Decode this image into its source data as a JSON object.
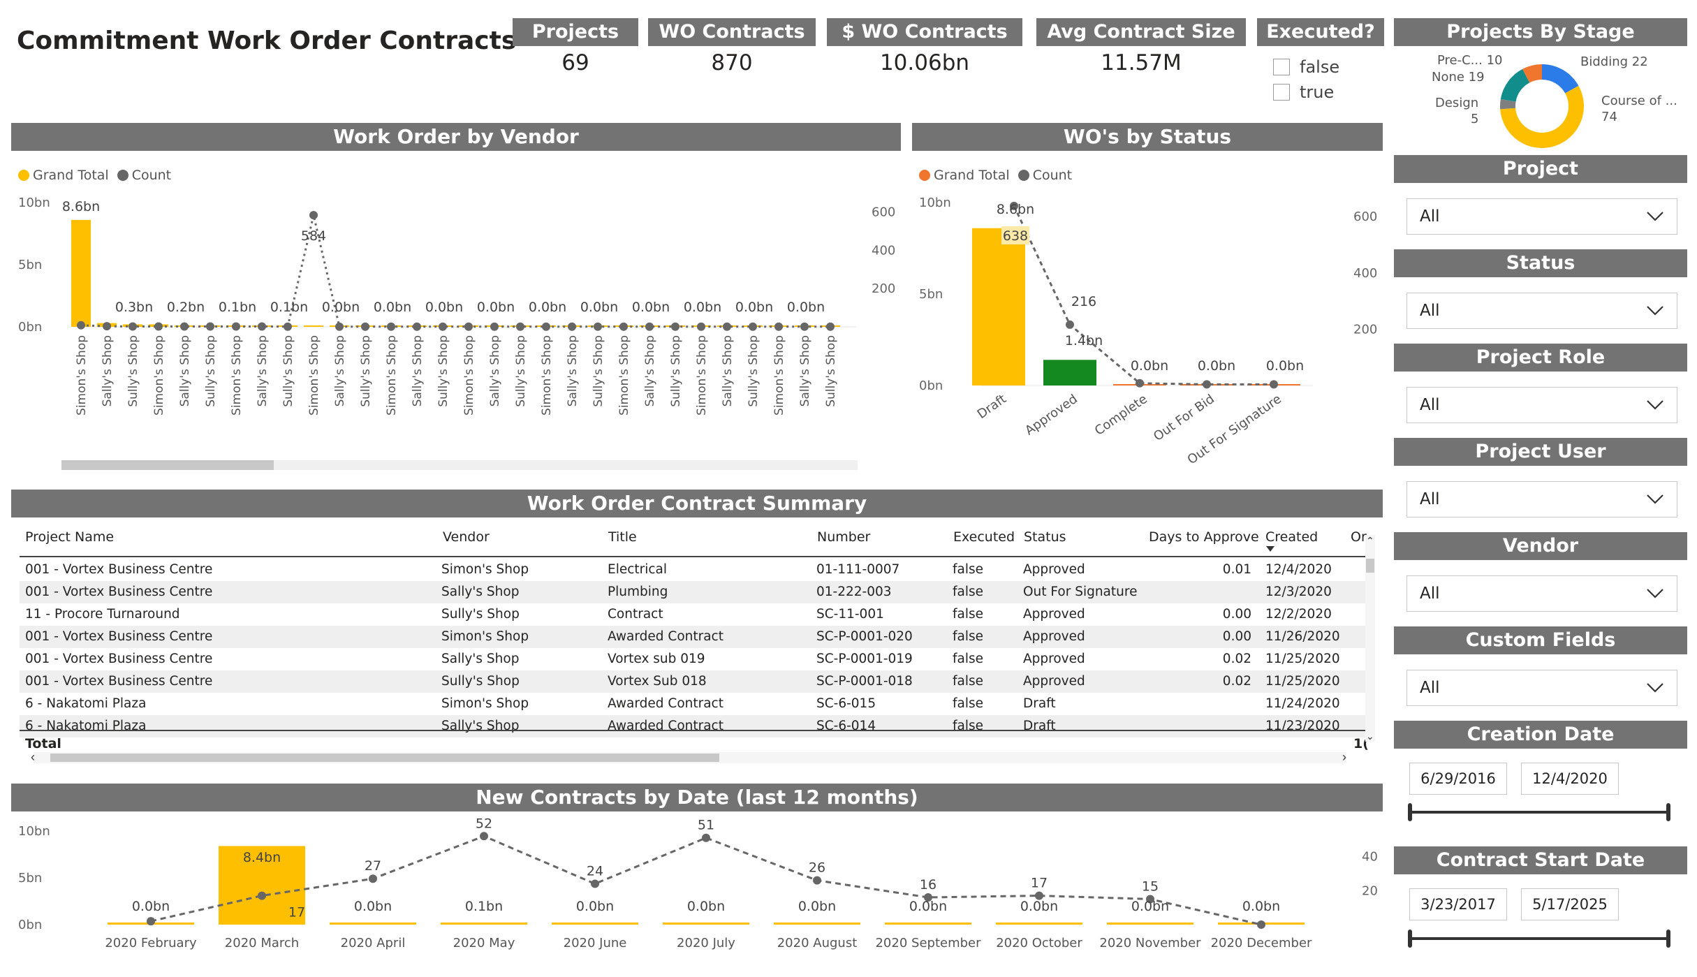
{
  "title": "Commitment Work Order Contracts",
  "kpis": [
    {
      "label": "Projects",
      "value": "69"
    },
    {
      "label": "WO Contracts",
      "value": "870"
    },
    {
      "label": "$ WO Contracts",
      "value": "10.06bn"
    },
    {
      "label": "Avg Contract Size",
      "value": "11.57M"
    }
  ],
  "executed": {
    "label": "Executed?",
    "options": [
      "false",
      "true"
    ]
  },
  "stage": {
    "title": "Projects By Stage",
    "labels": [
      {
        "name": "Pre-C... 10"
      },
      {
        "name": "None 19"
      },
      {
        "name": "Design"
      },
      {
        "name": "5"
      },
      {
        "name": "Bidding 22"
      },
      {
        "name": "Course of ..."
      },
      {
        "name": "74"
      }
    ],
    "segments": [
      {
        "name": "Course of Construction",
        "value": 74,
        "color": "#FDBF00"
      },
      {
        "name": "Bidding",
        "value": 22,
        "color": "#2B7CE9"
      },
      {
        "name": "None",
        "value": 19,
        "color": "#118D8C"
      },
      {
        "name": "Pre-Construction",
        "value": 10,
        "color": "#F0762D"
      },
      {
        "name": "Design",
        "value": 5,
        "color": "#7F7F7F"
      }
    ]
  },
  "slicers": {
    "project": {
      "label": "Project",
      "value": "All"
    },
    "status": {
      "label": "Status",
      "value": "All"
    },
    "project_role": {
      "label": "Project Role",
      "value": "All"
    },
    "project_user": {
      "label": "Project User",
      "value": "All"
    },
    "vendor": {
      "label": "Vendor",
      "value": "All"
    },
    "custom_fields": {
      "label": "Custom Fields",
      "value": "All"
    },
    "creation_date": {
      "label": "Creation Date",
      "start": "6/29/2016",
      "end": "12/4/2020"
    },
    "contract_start_date": {
      "label": "Contract Start Date",
      "start": "3/23/2017",
      "end": "5/17/2025"
    }
  },
  "vendor_chart": {
    "title": "Work Order by Vendor",
    "legend": [
      "Grand Total",
      "Count"
    ],
    "colors": {
      "bar": "#FDBF00",
      "line": "#666666"
    }
  },
  "status_chart": {
    "title": "WO's by Status",
    "legend": [
      "Grand Total",
      "Count"
    ],
    "colors": {
      "legend_total": "#F0762D",
      "line": "#666666"
    }
  },
  "date_chart": {
    "title": "New Contracts by Date (last 12 months)"
  },
  "table": {
    "title": "Work Order Contract Summary",
    "columns": [
      "Project Name",
      "Vendor",
      "Title",
      "Number",
      "Executed",
      "Status",
      "Days to Approve",
      "Created",
      "Or"
    ],
    "rows": [
      [
        "001 - Vortex Business Centre",
        "Simon's Shop",
        "Electrical",
        "01-111-0007",
        "false",
        "Approved",
        "0.01",
        "12/4/2020"
      ],
      [
        "001 - Vortex Business Centre",
        "Sally's Shop",
        "Plumbing",
        "01-222-003",
        "false",
        "Out For Signature",
        "",
        "12/3/2020"
      ],
      [
        "11 - Procore Turnaround",
        "Sully's Shop",
        "Contract",
        "SC-11-001",
        "false",
        "Approved",
        "0.00",
        "12/2/2020"
      ],
      [
        "001 - Vortex Business Centre",
        "Simon's Shop",
        "Awarded Contract",
        "SC-P-0001-020",
        "false",
        "Approved",
        "0.00",
        "11/26/2020"
      ],
      [
        "001 - Vortex Business Centre",
        "Sally's Shop",
        "Vortex sub 019",
        "SC-P-0001-019",
        "false",
        "Approved",
        "0.02",
        "11/25/2020"
      ],
      [
        "001 - Vortex Business Centre",
        "Sully's Shop",
        "Vortex Sub 018",
        "SC-P-0001-018",
        "false",
        "Approved",
        "0.02",
        "11/25/2020"
      ],
      [
        "6 - Nakatomi Plaza",
        "Simon's Shop",
        "Awarded Contract",
        "SC-6-015",
        "false",
        "Draft",
        "",
        "11/24/2020"
      ],
      [
        "6 - Nakatomi Plaza",
        "Sally's Shop",
        "Awarded Contract",
        "SC-6-014",
        "false",
        "Draft",
        "",
        "11/23/2020"
      ]
    ],
    "total_label": "Total",
    "total_tail": "1("
  },
  "chart_data": [
    {
      "type": "bar",
      "title": "Work Order by Vendor",
      "legend": [
        "Grand Total",
        "Count"
      ],
      "categories": [
        "Simon's Shop",
        "Sally's Shop",
        "Sully's Shop",
        "Simon's Shop",
        "Sally's Shop",
        "Sully's Shop",
        "Simon's Shop",
        "Sally's Shop",
        "Sully's Shop",
        "Simon's Shop",
        "Sally's Shop",
        "Sully's Shop",
        "Simon's Shop",
        "Sally's Shop",
        "Sully's Shop",
        "Simon's Shop",
        "Sally's Shop",
        "Sully's Shop",
        "Simon's Shop",
        "Sally's Shop",
        "Sully's Shop",
        "Simon's Shop",
        "Sally's Shop",
        "Sully's Shop",
        "Simon's Shop",
        "Sally's Shop",
        "Sully's Shop",
        "Simon's Shop",
        "Sally's Shop",
        "Sully's Shop"
      ],
      "series": [
        {
          "name": "Grand Total",
          "values": [
            8.6,
            0.3,
            0.2,
            0.2,
            0.1,
            0.1,
            0.1,
            0.1,
            0.0,
            0.0,
            0.0,
            0.0,
            0.0,
            0.0,
            0.0,
            0.0,
            0.0,
            0.0,
            0.0,
            0.0,
            0.0,
            0.0,
            0.0,
            0.0,
            0.0,
            0.0,
            0.0,
            0.0,
            0.0,
            0.0
          ]
        },
        {
          "name": "Count",
          "values": [
            8,
            3,
            2,
            2,
            2,
            2,
            2,
            2,
            1,
            584,
            1,
            1,
            1,
            1,
            1,
            1,
            1,
            1,
            1,
            1,
            1,
            1,
            1,
            1,
            1,
            1,
            1,
            1,
            1,
            1
          ]
        }
      ],
      "labels": [
        "8.6bn",
        "0.3bn",
        "0.2bn",
        "0.1bn",
        "0.1bn",
        "0.0bn",
        "0.0bn",
        "0.0bn",
        "0.0bn",
        "0.0bn",
        "0.0bn",
        "0.0bn",
        "0.0bn",
        "0.0bn",
        "0.0bn"
      ],
      "count_peak_label": "584",
      "y_ticks": [
        "0bn",
        "5bn",
        "10bn"
      ],
      "y2_ticks": [
        "200",
        "400",
        "600"
      ],
      "ylim": [
        0,
        10
      ],
      "y2lim": [
        0,
        650
      ]
    },
    {
      "type": "bar",
      "title": "WO's by Status",
      "legend": [
        "Grand Total",
        "Count"
      ],
      "categories": [
        "Draft",
        "Approved",
        "Complete",
        "Out For Bid",
        "Out For Signature"
      ],
      "series": [
        {
          "name": "Grand Total",
          "values": [
            8.6,
            1.4,
            0.0,
            0.0,
            0.0
          ],
          "colors": [
            "#FDBF00",
            "#13891F",
            "#F0762D",
            "#F0762D",
            "#F0762D"
          ]
        },
        {
          "name": "Count",
          "values": [
            638,
            216,
            8,
            4,
            4
          ]
        }
      ],
      "total_labels": [
        "8.6bn",
        "1.4bn",
        "0.0bn",
        "0.0bn",
        "0.0bn"
      ],
      "count_labels": [
        "638",
        "216"
      ],
      "y_ticks": [
        "0bn",
        "5bn",
        "10bn"
      ],
      "y2_ticks": [
        "200",
        "400",
        "600"
      ],
      "ylim": [
        0,
        10
      ],
      "y2lim": [
        0,
        650
      ]
    },
    {
      "type": "bar",
      "title": "New Contracts by Date (last 12 months)",
      "categories": [
        "2020 February",
        "2020 March",
        "2020 April",
        "2020 May",
        "2020 June",
        "2020 July",
        "2020 August",
        "2020 September",
        "2020 October",
        "2020 November",
        "2020 December"
      ],
      "series": [
        {
          "name": "Grand Total",
          "values": [
            0.0,
            8.4,
            0.0,
            0.1,
            0.0,
            0.0,
            0.0,
            0.0,
            0.0,
            0.0,
            0.0
          ]
        },
        {
          "name": "Count",
          "values": [
            2,
            17,
            27,
            52,
            24,
            51,
            26,
            16,
            17,
            15,
            0
          ]
        }
      ],
      "total_labels": [
        "0.0bn",
        "8.4bn",
        "0.0bn",
        "0.1bn",
        "0.0bn",
        "0.0bn",
        "0.0bn",
        "0.0bn",
        "0.0bn",
        "0.0bn",
        "0.0bn"
      ],
      "count_labels": [
        "",
        "17",
        "27",
        "52",
        "24",
        "51",
        "26",
        "16",
        "17",
        "15",
        ""
      ],
      "y_ticks": [
        "0bn",
        "5bn",
        "10bn"
      ],
      "y2_ticks": [
        "20",
        "40"
      ],
      "ylim": [
        0,
        10
      ],
      "y2lim": [
        0,
        55
      ]
    }
  ]
}
